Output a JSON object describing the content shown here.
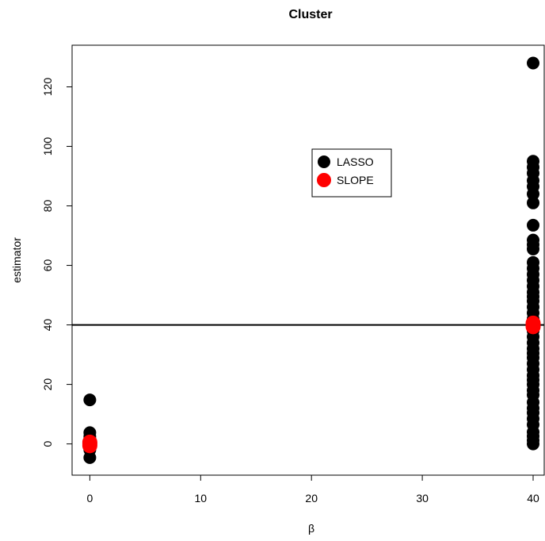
{
  "chart_data": {
    "type": "scatter",
    "title": "Cluster",
    "xlabel": "β",
    "ylabel": "estimator",
    "xlim": [
      -1.6,
      41
    ],
    "ylim": [
      -10.5,
      134
    ],
    "xticks": [
      0,
      10,
      20,
      30,
      40
    ],
    "yticks": [
      0,
      20,
      40,
      60,
      80,
      100,
      120
    ],
    "reference_line": {
      "y": 40,
      "color": "#000000"
    },
    "legend": {
      "placement": "upper-middle"
    },
    "series": [
      {
        "name": "LASSO",
        "color": "#000000",
        "points": [
          [
            0,
            -4.6
          ],
          [
            0,
            -2
          ],
          [
            0,
            0
          ],
          [
            0,
            1.5
          ],
          [
            0,
            2.5
          ],
          [
            0,
            3.8
          ],
          [
            0,
            14.8
          ],
          [
            40,
            0
          ],
          [
            40,
            1.2
          ],
          [
            40,
            2.6
          ],
          [
            40,
            4
          ],
          [
            40,
            6.5
          ],
          [
            40,
            8.5
          ],
          [
            40,
            10.5
          ],
          [
            40,
            12
          ],
          [
            40,
            14
          ],
          [
            40,
            16.5
          ],
          [
            40,
            18
          ],
          [
            40,
            20
          ],
          [
            40,
            21.5
          ],
          [
            40,
            23
          ],
          [
            40,
            25
          ],
          [
            40,
            27
          ],
          [
            40,
            29
          ],
          [
            40,
            30.5
          ],
          [
            40,
            32
          ],
          [
            40,
            34
          ],
          [
            40,
            36
          ],
          [
            40,
            38
          ],
          [
            40,
            40
          ],
          [
            40,
            42
          ],
          [
            40,
            44
          ],
          [
            40,
            46
          ],
          [
            40,
            48
          ],
          [
            40,
            49.5
          ],
          [
            40,
            51
          ],
          [
            40,
            53
          ],
          [
            40,
            55
          ],
          [
            40,
            57
          ],
          [
            40,
            59
          ],
          [
            40,
            61
          ],
          [
            40,
            65.5
          ],
          [
            40,
            67
          ],
          [
            40,
            68.5
          ],
          [
            40,
            73.5
          ],
          [
            40,
            81
          ],
          [
            40,
            84
          ],
          [
            40,
            86.5
          ],
          [
            40,
            88.5
          ],
          [
            40,
            91
          ],
          [
            40,
            93
          ],
          [
            40,
            95
          ],
          [
            40,
            128
          ]
        ]
      },
      {
        "name": "SLOPE",
        "color": "#ff0000",
        "points": [
          [
            0,
            -0.6
          ],
          [
            0,
            0
          ],
          [
            0,
            0.6
          ],
          [
            40,
            39.4
          ],
          [
            40,
            40
          ],
          [
            40,
            40.6
          ]
        ]
      }
    ]
  }
}
